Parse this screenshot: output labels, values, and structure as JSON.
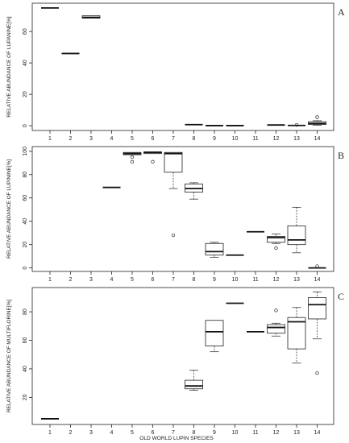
{
  "chart_data": [
    {
      "type": "boxplot",
      "panel_label": "A",
      "ylabel": "RELATIVE ABUNDANCE OF LUPANINE[%]",
      "ylim": [
        -3,
        78
      ],
      "yticks": [
        0,
        20,
        40,
        60
      ],
      "categories": [
        "1",
        "2",
        "3",
        "4",
        "5",
        "6",
        "7",
        "8",
        "9",
        "10",
        "11",
        "12",
        "13",
        "14"
      ],
      "boxes": [
        {
          "x": 1,
          "q1": 75,
          "median": 75,
          "q3": 75,
          "low": 75,
          "high": 75,
          "outliers": []
        },
        {
          "x": 2,
          "q1": 46,
          "median": 46,
          "q3": 46,
          "low": 46,
          "high": 46,
          "outliers": []
        },
        {
          "x": 3,
          "q1": 68.5,
          "median": 69,
          "q3": 70,
          "low": 68.5,
          "high": 70,
          "outliers": []
        },
        {
          "x": 8,
          "q1": 0.4,
          "median": 0.7,
          "q3": 0.9,
          "low": 0.4,
          "high": 0.9,
          "outliers": []
        },
        {
          "x": 9,
          "q1": 0,
          "median": 0.1,
          "q3": 0.2,
          "low": 0,
          "high": 0.2,
          "outliers": []
        },
        {
          "x": 10,
          "q1": 0,
          "median": 0.1,
          "q3": 0.2,
          "low": 0,
          "high": 0.2,
          "outliers": []
        },
        {
          "x": 12,
          "q1": 0.2,
          "median": 0.5,
          "q3": 0.7,
          "low": 0.2,
          "high": 0.7,
          "outliers": []
        },
        {
          "x": 13,
          "q1": 0,
          "median": 0.2,
          "q3": 0.4,
          "low": 0,
          "high": 0.4,
          "outliers": [
            0.6
          ]
        },
        {
          "x": 14,
          "q1": 0.8,
          "median": 1.5,
          "q3": 2.6,
          "low": 0.3,
          "high": 3.2,
          "outliers": [
            5.5
          ]
        }
      ]
    },
    {
      "type": "boxplot",
      "panel_label": "B",
      "ylabel": "RELATIVE ABUNDANCE OF LUPININE[%]",
      "ylim": [
        -3,
        104
      ],
      "yticks": [
        0,
        20,
        40,
        60,
        80,
        100
      ],
      "categories": [
        "1",
        "2",
        "3",
        "4",
        "5",
        "6",
        "7",
        "8",
        "9",
        "10",
        "11",
        "12",
        "13",
        "14"
      ],
      "boxes": [
        {
          "x": 4,
          "q1": 69,
          "median": 69,
          "q3": 69,
          "low": 69,
          "high": 69,
          "outliers": []
        },
        {
          "x": 5,
          "q1": 97,
          "median": 98,
          "q3": 99,
          "low": 97,
          "high": 99,
          "outliers": [
            95,
            91
          ]
        },
        {
          "x": 6,
          "q1": 98,
          "median": 99,
          "q3": 99.5,
          "low": 98,
          "high": 99.5,
          "outliers": [
            91
          ]
        },
        {
          "x": 7,
          "q1": 82,
          "median": 98,
          "q3": 99,
          "low": 68,
          "high": 99,
          "outliers": [
            28
          ]
        },
        {
          "x": 8,
          "q1": 65,
          "median": 68,
          "q3": 72,
          "low": 59,
          "high": 73,
          "outliers": []
        },
        {
          "x": 9,
          "q1": 11,
          "median": 14,
          "q3": 21,
          "low": 9,
          "high": 22,
          "outliers": []
        },
        {
          "x": 10,
          "q1": 11,
          "median": 11,
          "q3": 11,
          "low": 11,
          "high": 11,
          "outliers": []
        },
        {
          "x": 11,
          "q1": 31,
          "median": 31,
          "q3": 31,
          "low": 31,
          "high": 31,
          "outliers": []
        },
        {
          "x": 12,
          "q1": 22,
          "median": 26,
          "q3": 27,
          "low": 21,
          "high": 29,
          "outliers": [
            17
          ]
        },
        {
          "x": 13,
          "q1": 20,
          "median": 24,
          "q3": 36,
          "low": 13,
          "high": 52,
          "outliers": []
        },
        {
          "x": 14,
          "q1": 0,
          "median": 0,
          "q3": 0.5,
          "low": 0,
          "high": 0.5,
          "outliers": [
            1.5
          ]
        }
      ]
    },
    {
      "type": "boxplot",
      "panel_label": "C",
      "ylabel": "RELATIVE ABUNDANCE OF MULTIFLORINE[%]",
      "ylim": [
        1,
        97
      ],
      "yticks": [
        20,
        40,
        60,
        80
      ],
      "categories": [
        "1",
        "2",
        "3",
        "4",
        "5",
        "6",
        "7",
        "8",
        "9",
        "10",
        "11",
        "12",
        "13",
        "14"
      ],
      "xlabel": "OLD WORLD LUPIN SPECIES",
      "boxes": [
        {
          "x": 1,
          "q1": 5,
          "median": 5,
          "q3": 5,
          "low": 5,
          "high": 5,
          "outliers": []
        },
        {
          "x": 8,
          "q1": 26,
          "median": 28,
          "q3": 32,
          "low": 25,
          "high": 39,
          "outliers": []
        },
        {
          "x": 9,
          "q1": 56,
          "median": 66,
          "q3": 74,
          "low": 52,
          "high": 74,
          "outliers": []
        },
        {
          "x": 10,
          "q1": 86,
          "median": 86,
          "q3": 86,
          "low": 86,
          "high": 86,
          "outliers": []
        },
        {
          "x": 11,
          "q1": 66,
          "median": 66,
          "q3": 66,
          "low": 66,
          "high": 66,
          "outliers": []
        },
        {
          "x": 12,
          "q1": 65,
          "median": 69,
          "q3": 71,
          "low": 63,
          "high": 72,
          "outliers": [
            81
          ]
        },
        {
          "x": 13,
          "q1": 54,
          "median": 73,
          "q3": 76,
          "low": 44,
          "high": 83,
          "outliers": []
        },
        {
          "x": 14,
          "q1": 75,
          "median": 85,
          "q3": 90,
          "low": 61,
          "high": 94,
          "outliers": [
            37
          ]
        }
      ]
    }
  ]
}
